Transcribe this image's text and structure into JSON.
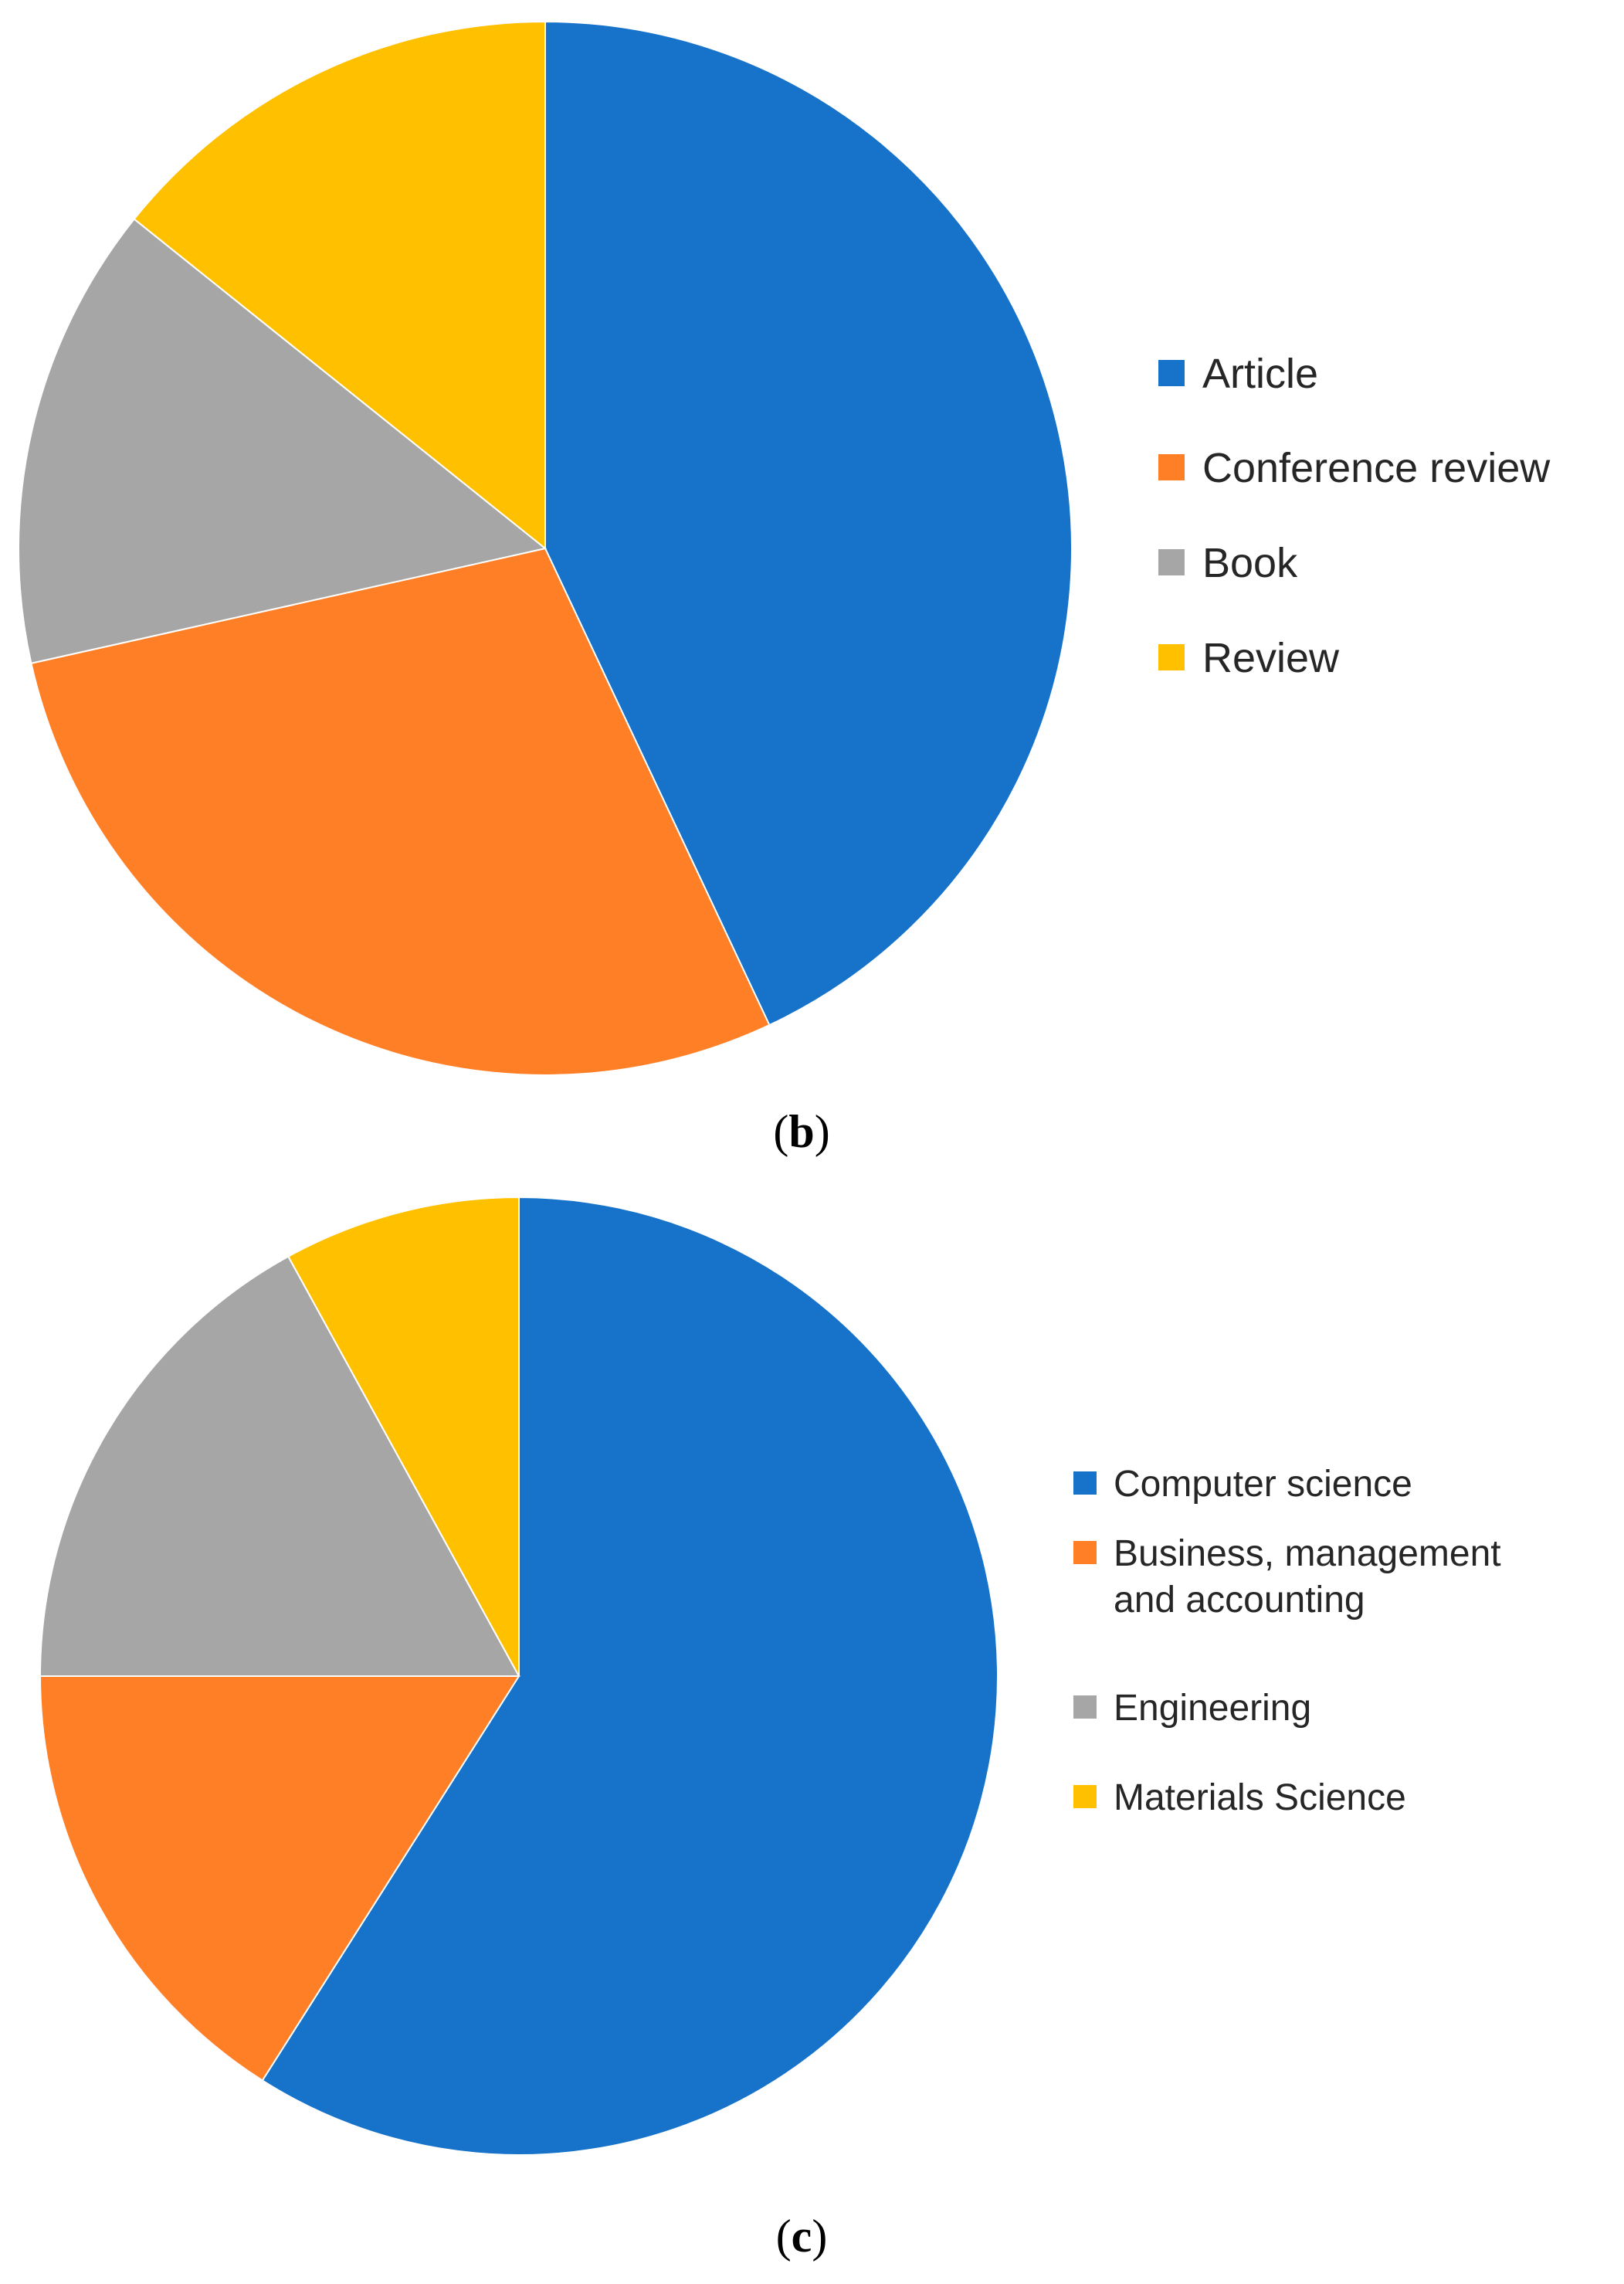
{
  "chart_data": [
    {
      "type": "pie",
      "panel_label": "b",
      "title": "",
      "start_angle_deg": 0,
      "direction": "clockwise",
      "legend_position": "right",
      "slices": [
        {
          "label": "Article",
          "value": 43,
          "color": "#1772C9"
        },
        {
          "label": "Conference review",
          "value": 28.5,
          "color": "#FF7F27"
        },
        {
          "label": "Book",
          "value": 14.25,
          "color": "#A6A6A6"
        },
        {
          "label": "Review",
          "value": 14.25,
          "color": "#FFC000"
        }
      ]
    },
    {
      "type": "pie",
      "panel_label": "c",
      "title": "",
      "start_angle_deg": 0,
      "direction": "clockwise",
      "legend_position": "right",
      "slices": [
        {
          "label": "Computer science",
          "value": 59,
          "color": "#1772C9"
        },
        {
          "label": "Business, management and accounting",
          "legend_lines": [
            "Business, management",
            "and accounting"
          ],
          "value": 16,
          "color": "#FF7F27"
        },
        {
          "label": "Engineering",
          "value": 17,
          "color": "#A6A6A6"
        },
        {
          "label": "Materials Science",
          "value": 8,
          "color": "#FFC000"
        }
      ]
    }
  ]
}
